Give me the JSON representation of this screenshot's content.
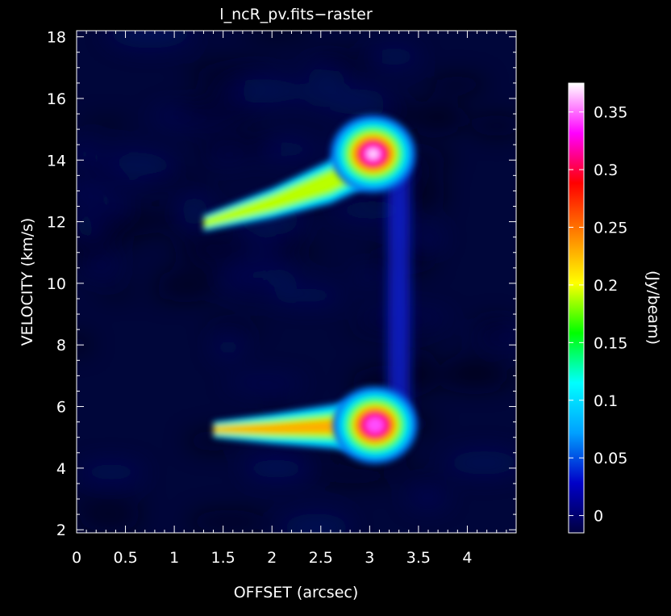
{
  "chart_data": {
    "type": "heatmap",
    "title": "l_ncR_pv.fits−raster",
    "xlabel": "OFFSET (arcsec)",
    "ylabel": "VELOCITY (km/s)",
    "colorbar_label": "(Jy/beam)",
    "xlim": [
      0,
      4.5
    ],
    "ylim": [
      1.9,
      18.2
    ],
    "x_ticks": [
      0,
      0.5,
      1,
      1.5,
      2,
      2.5,
      3,
      3.5,
      4
    ],
    "x_tick_labels": [
      "0",
      "0.5",
      "1",
      "1.5",
      "2",
      "2.5",
      "3",
      "3.5",
      "4"
    ],
    "y_ticks": [
      2,
      4,
      6,
      8,
      10,
      12,
      14,
      16,
      18
    ],
    "y_tick_labels": [
      "2",
      "4",
      "6",
      "8",
      "10",
      "12",
      "14",
      "16",
      "18"
    ],
    "colorbar_range": [
      -0.015,
      0.375
    ],
    "colorbar_ticks": [
      0,
      0.05,
      0.1,
      0.15,
      0.2,
      0.25,
      0.3,
      0.35
    ],
    "colorbar_tick_labels": [
      "0",
      "0.05",
      "0.1",
      "0.15",
      "0.2",
      "0.25",
      "0.3",
      "0.35"
    ],
    "colormap": [
      "#000040",
      "#0000c8",
      "#00a0ff",
      "#00ffff",
      "#00ff00",
      "#ffff00",
      "#ff8000",
      "#ff0000",
      "#ff00ff",
      "#ffffff"
    ],
    "features": [
      {
        "type": "peak",
        "x": 3.06,
        "y": 14.2,
        "value": 0.37
      },
      {
        "type": "peak",
        "x": 3.08,
        "y": 5.4,
        "value": 0.36
      },
      {
        "type": "ridge",
        "points": [
          [
            1.3,
            11.95
          ],
          [
            2.0,
            12.6
          ],
          [
            2.6,
            13.3
          ],
          [
            3.06,
            14.2
          ]
        ],
        "value": 0.12
      },
      {
        "type": "ridge",
        "points": [
          [
            1.4,
            5.25
          ],
          [
            2.0,
            5.28
          ],
          [
            2.6,
            5.35
          ],
          [
            3.08,
            5.4
          ]
        ],
        "value": 0.14
      },
      {
        "type": "faint_bridge",
        "x": 3.3,
        "y_range": [
          5.5,
          14.0
        ],
        "value": 0.045
      }
    ]
  }
}
